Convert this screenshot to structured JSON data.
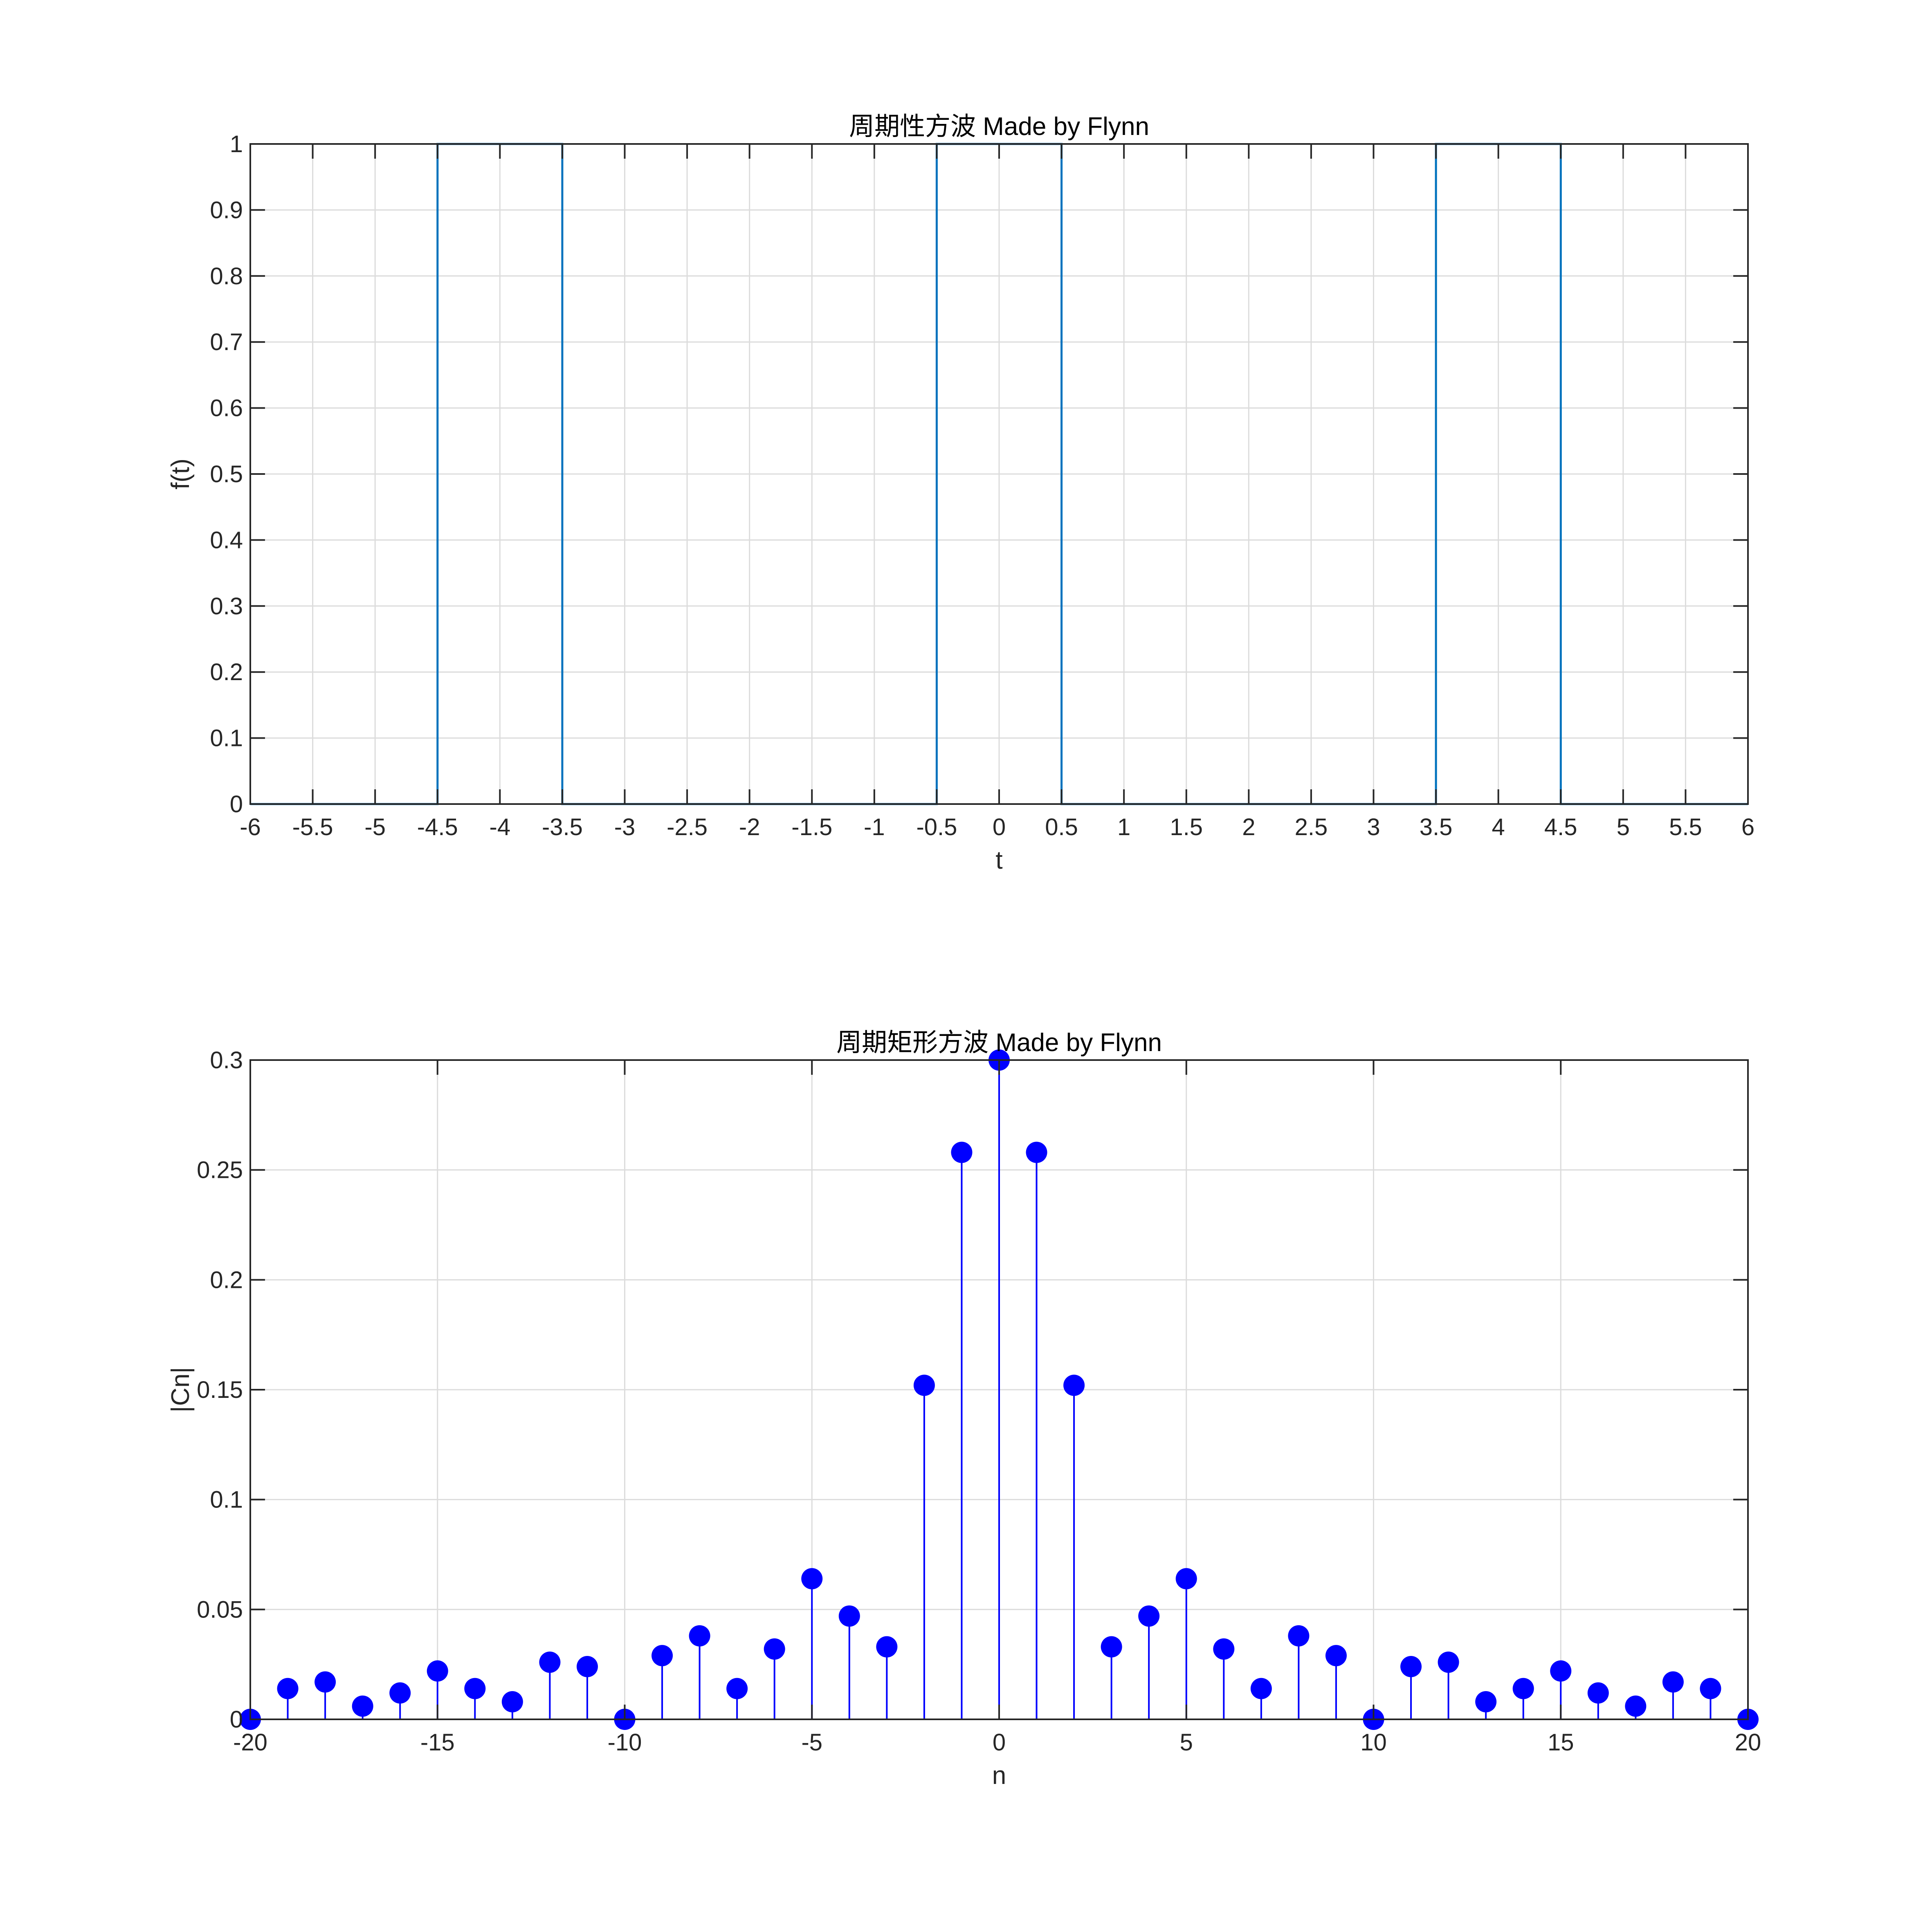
{
  "chart_data": [
    {
      "type": "line",
      "title": "周期性方波 Made by Flynn",
      "xlabel": "t",
      "ylabel": "f(t)",
      "xlim": [
        -6,
        6
      ],
      "ylim": [
        0,
        1
      ],
      "grid": true,
      "xticks": [
        "-6",
        "-5.5",
        "-5",
        "-4.5",
        "-4",
        "-3.5",
        "-3",
        "-2.5",
        "-2",
        "-1.5",
        "-1",
        "-0.5",
        "0",
        "0.5",
        "1",
        "1.5",
        "2",
        "2.5",
        "3",
        "3.5",
        "4",
        "4.5",
        "5",
        "5.5",
        "6"
      ],
      "yticks": [
        "0",
        "0.1",
        "0.2",
        "0.3",
        "0.4",
        "0.5",
        "0.6",
        "0.7",
        "0.8",
        "0.9",
        "1"
      ],
      "color": "#0072BD",
      "series": [
        {
          "x": [
            -6,
            -4.5,
            -4.5,
            -3.5,
            -3.5,
            -0.5,
            -0.5,
            0.5,
            0.5,
            3.5,
            3.5,
            4.5,
            4.5,
            6
          ],
          "y": [
            0,
            0,
            1,
            1,
            0,
            0,
            1,
            1,
            0,
            0,
            1,
            1,
            0,
            0
          ]
        }
      ]
    },
    {
      "type": "stem",
      "title": "周期矩形方波 Made by Flynn",
      "xlabel": "n",
      "ylabel": "|Cn|",
      "xlim": [
        -20,
        20
      ],
      "ylim": [
        0,
        0.3
      ],
      "grid": true,
      "xticks": [
        "-20",
        "-15",
        "-10",
        "-5",
        "0",
        "5",
        "10",
        "15",
        "20"
      ],
      "yticks": [
        "0",
        "0.05",
        "0.1",
        "0.15",
        "0.2",
        "0.25",
        "0.3"
      ],
      "color": "#0000FF",
      "x": [
        -20,
        -19,
        -18,
        -17,
        -16,
        -15,
        -14,
        -13,
        -12,
        -11,
        -10,
        -9,
        -8,
        -7,
        -6,
        -5,
        -4,
        -3,
        -2,
        -1,
        0,
        1,
        2,
        3,
        4,
        5,
        6,
        7,
        8,
        9,
        10,
        11,
        12,
        13,
        14,
        15,
        16,
        17,
        18,
        19,
        20
      ],
      "values": [
        0.0,
        0.014,
        0.017,
        0.006,
        0.012,
        0.022,
        0.014,
        0.008,
        0.026,
        0.024,
        0.0,
        0.029,
        0.038,
        0.014,
        0.032,
        0.064,
        0.047,
        0.033,
        0.152,
        0.258,
        0.3,
        0.258,
        0.152,
        0.033,
        0.047,
        0.064,
        0.032,
        0.014,
        0.038,
        0.029,
        0.0,
        0.024,
        0.026,
        0.008,
        0.014,
        0.022,
        0.012,
        0.006,
        0.017,
        0.014,
        0.0
      ]
    }
  ]
}
